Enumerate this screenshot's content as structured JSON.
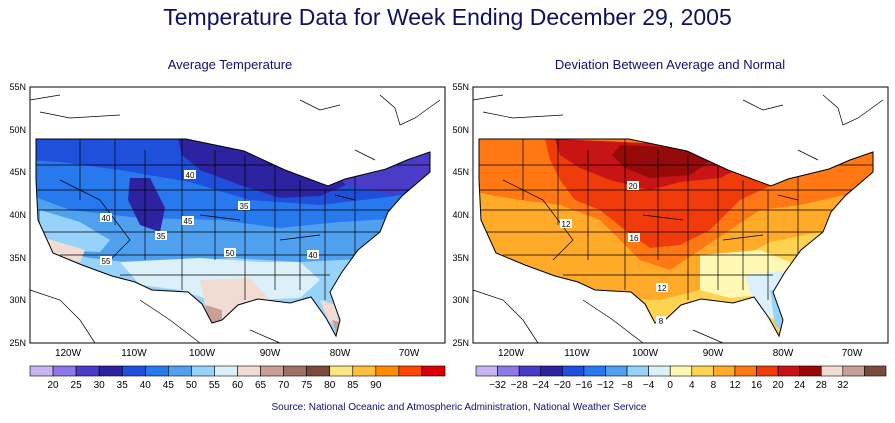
{
  "title": "Temperature Data for Week Ending December 29, 2005",
  "source": "Source:  National Oceanic and Atmospheric Administration, National Weather Service",
  "latitude_labels": [
    "55N",
    "50N",
    "45N",
    "40N",
    "35N",
    "30N",
    "25N"
  ],
  "longitude_labels": [
    "120W",
    "110W",
    "100W",
    "90W",
    "80W",
    "70W"
  ],
  "left_map": {
    "title": "Average Temperature",
    "legend_labels": [
      "20",
      "25",
      "30",
      "35",
      "40",
      "45",
      "50",
      "55",
      "60",
      "65",
      "70",
      "75",
      "80",
      "85",
      "90"
    ],
    "legend_colors": [
      "#c8b4f0",
      "#8c78e6",
      "#4b3cc8",
      "#2d23a0",
      "#1e50dc",
      "#2878ee",
      "#50a0f0",
      "#96d2fa",
      "#dcf0fa",
      "#f0dcd2",
      "#c8a096",
      "#a07064",
      "#7a4a3c",
      "#fae682",
      "#ffbe3c",
      "#ff8c00",
      "#ff4600",
      "#dc0000"
    ],
    "contour_labels": [
      "40",
      "35",
      "40",
      "45",
      "35",
      "50",
      "40",
      "55"
    ]
  },
  "right_map": {
    "title": "Deviation Between Average and Normal",
    "legend_labels": [
      "−32",
      "−28",
      "−24",
      "−20",
      "−16",
      "−12",
      "−8",
      "−4",
      "0",
      "4",
      "8",
      "12",
      "16",
      "20",
      "24",
      "28",
      "32"
    ],
    "legend_colors": [
      "#c8b4f0",
      "#8c78e6",
      "#4b3cc8",
      "#2d23a0",
      "#1e50dc",
      "#2878ee",
      "#50a0f0",
      "#96d2fa",
      "#dcf0fa",
      "#fff8b4",
      "#ffd250",
      "#ffaa28",
      "#ff7814",
      "#f03c0a",
      "#c81414",
      "#960a0a",
      "#f0dcd2",
      "#c8a096",
      "#7a4a3c"
    ],
    "contour_labels": [
      "20",
      "12",
      "16",
      "12",
      "8"
    ]
  }
}
